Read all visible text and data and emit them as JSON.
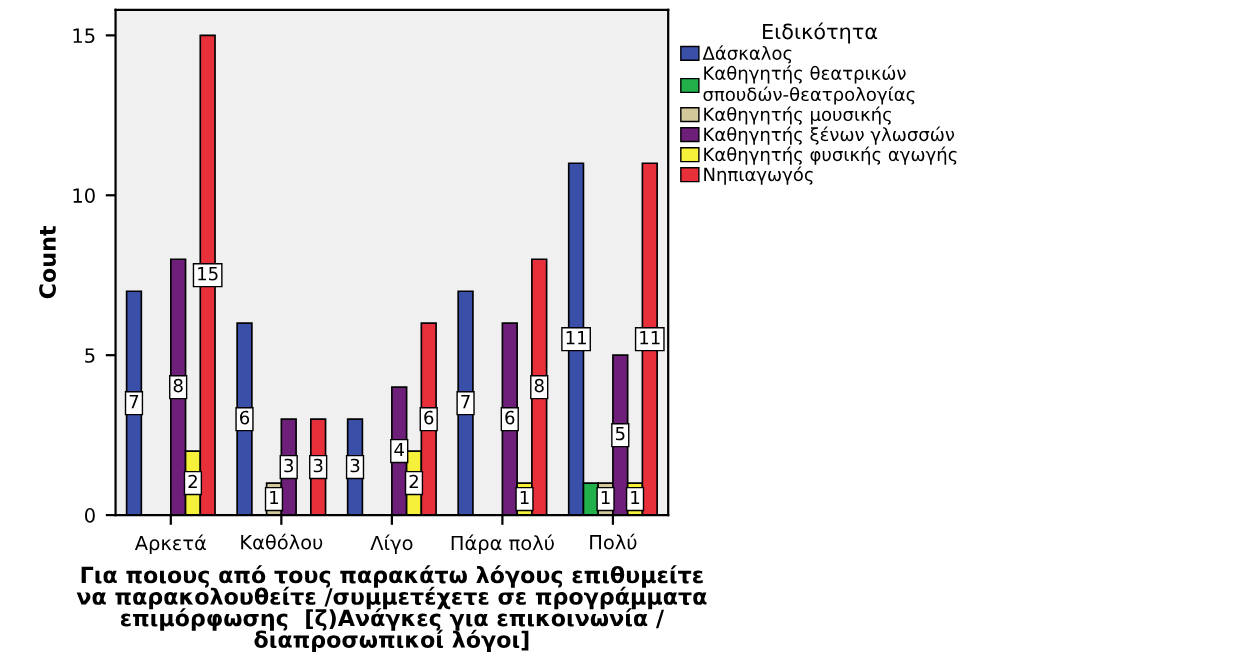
{
  "chart_data": {
    "type": "bar",
    "xlabel": "Για ποιους από τους παρακάτω λόγους επιθυμείτε\nνα παρακολουθείτε /συμμετέχετε σε προγράμματα\nεπιμόρφωσης  [ζ)Ανάγκες για επικοινωνία /\nδιαπροσωπικοί λόγοι]",
    "ylabel": "Count",
    "legend_title": "Ειδικότητα",
    "categories": [
      "Αρκετά",
      "Καθόλου",
      "Λίγο",
      "Πάρα πολύ",
      "Πολύ"
    ],
    "series": [
      {
        "name": "Δάσκαλος",
        "color": "#3a4fa8",
        "values": [
          7,
          6,
          3,
          7,
          11
        ],
        "value_labels": [
          "7",
          "6",
          "3",
          "7",
          "11"
        ]
      },
      {
        "name": "Καθηγητής θεατρικών\nσπουδών-θεατρολογίας",
        "color": "#22b04a",
        "values": [
          null,
          null,
          null,
          null,
          1
        ],
        "value_labels": [
          null,
          null,
          null,
          null,
          null
        ]
      },
      {
        "name": "Καθηγητής μουσικής",
        "color": "#d2c89a",
        "values": [
          null,
          1,
          null,
          null,
          1
        ],
        "value_labels": [
          null,
          "1",
          null,
          null,
          "1"
        ]
      },
      {
        "name": "Καθηγητής ξένων γλωσσών",
        "color": "#6e1f7a",
        "values": [
          8,
          3,
          4,
          6,
          5
        ],
        "value_labels": [
          "8",
          "3",
          "4",
          "6",
          "5"
        ]
      },
      {
        "name": "Καθηγητής φυσικής αγωγής",
        "color": "#f5f03a",
        "values": [
          2,
          null,
          2,
          1,
          1
        ],
        "value_labels": [
          "2",
          null,
          "2",
          "1",
          "1"
        ]
      },
      {
        "name": "Νηπιαγωγός",
        "color": "#e8303a",
        "values": [
          15,
          3,
          6,
          8,
          11
        ],
        "value_labels": [
          "15",
          "3",
          "6",
          "8",
          "11"
        ]
      }
    ],
    "ylim": [
      0,
      15.8
    ],
    "yticks": [
      0,
      5,
      10,
      15
    ],
    "grid": false,
    "legend": "right"
  }
}
